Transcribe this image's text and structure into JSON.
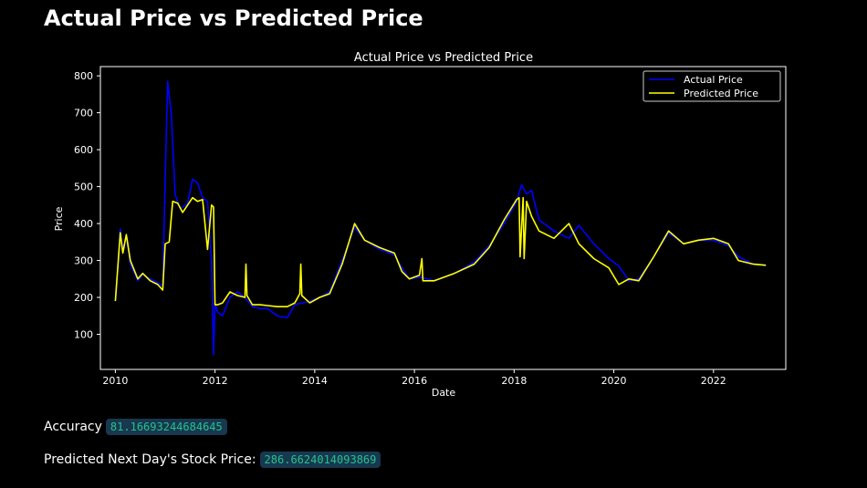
{
  "page": {
    "heading": "Actual Price vs Predicted Price"
  },
  "stats": {
    "accuracy_label": "Accuracy",
    "accuracy_value": "81.16693244684645",
    "next_price_label": "Predicted Next Day's Stock Price:",
    "next_price_value": "286.6624014093869"
  },
  "colors": {
    "background": "#000000",
    "actual": "#0000ff",
    "predicted": "#ffff00",
    "code_text": "#25c18d",
    "code_bg": "#17384f"
  },
  "chart_data": {
    "type": "line",
    "title": "Actual Price vs Predicted Price",
    "xlabel": "Date",
    "ylabel": "Price",
    "xlim": [
      2009.7,
      2023.45
    ],
    "ylim": [
      5,
      825
    ],
    "xticks": [
      2010,
      2012,
      2014,
      2016,
      2018,
      2020,
      2022
    ],
    "xtick_labels": [
      "2010",
      "2012",
      "2014",
      "2016",
      "2018",
      "2020",
      "2022"
    ],
    "yticks": [
      100,
      200,
      300,
      400,
      500,
      600,
      700,
      800
    ],
    "ytick_labels": [
      "100",
      "200",
      "300",
      "400",
      "500",
      "600",
      "700",
      "800"
    ],
    "legend_position": "top-right",
    "legend": [
      "Actual Price",
      "Predicted Price"
    ],
    "series": [
      {
        "name": "Actual Price",
        "color": "#0000ff",
        "x": [
          2010.0,
          2010.1,
          2010.15,
          2010.22,
          2010.3,
          2010.45,
          2010.55,
          2010.7,
          2010.85,
          2010.95,
          2011.0,
          2011.05,
          2011.12,
          2011.2,
          2011.3,
          2011.45,
          2011.55,
          2011.65,
          2011.75,
          2011.85,
          2011.93,
          2011.97,
          2012.0,
          2012.05,
          2012.15,
          2012.3,
          2012.45,
          2012.6,
          2012.75,
          2012.9,
          2013.05,
          2013.25,
          2013.45,
          2013.6,
          2013.75,
          2013.9,
          2014.1,
          2014.3,
          2014.55,
          2014.8,
          2015.0,
          2015.3,
          2015.6,
          2015.75,
          2015.9,
          2016.1,
          2016.4,
          2016.8,
          2017.2,
          2017.5,
          2017.8,
          2018.05,
          2018.15,
          2018.25,
          2018.35,
          2018.5,
          2018.8,
          2019.1,
          2019.3,
          2019.6,
          2019.9,
          2020.1,
          2020.3,
          2020.5,
          2020.8,
          2021.1,
          2021.4,
          2021.7,
          2022.0,
          2022.3,
          2022.5,
          2022.8,
          2023.05
        ],
        "y": [
          190,
          385,
          330,
          365,
          290,
          245,
          262,
          250,
          240,
          230,
          520,
          785,
          700,
          480,
          440,
          455,
          520,
          510,
          470,
          460,
          300,
          45,
          185,
          160,
          150,
          200,
          215,
          200,
          175,
          170,
          170,
          150,
          145,
          180,
          185,
          190,
          200,
          215,
          300,
          390,
          355,
          330,
          315,
          280,
          250,
          255,
          245,
          265,
          295,
          340,
          400,
          460,
          505,
          480,
          490,
          410,
          380,
          360,
          395,
          345,
          305,
          285,
          245,
          250,
          310,
          375,
          345,
          355,
          355,
          340,
          310,
          290,
          287
        ]
      },
      {
        "name": "Predicted Price",
        "color": "#ffff00",
        "x": [
          2010.0,
          2010.1,
          2010.15,
          2010.22,
          2010.3,
          2010.45,
          2010.55,
          2010.7,
          2010.85,
          2010.95,
          2011.0,
          2011.08,
          2011.15,
          2011.25,
          2011.35,
          2011.45,
          2011.55,
          2011.65,
          2011.75,
          2011.85,
          2011.93,
          2011.97,
          2012.0,
          2012.05,
          2012.15,
          2012.3,
          2012.45,
          2012.6,
          2012.62,
          2012.64,
          2012.75,
          2012.9,
          2013.05,
          2013.25,
          2013.45,
          2013.6,
          2013.7,
          2013.72,
          2013.74,
          2013.9,
          2014.1,
          2014.3,
          2014.55,
          2014.8,
          2015.0,
          2015.3,
          2015.6,
          2015.75,
          2015.9,
          2016.1,
          2016.15,
          2016.17,
          2016.4,
          2016.8,
          2017.2,
          2017.5,
          2017.8,
          2018.05,
          2018.1,
          2018.12,
          2018.18,
          2018.2,
          2018.25,
          2018.35,
          2018.5,
          2018.8,
          2019.1,
          2019.3,
          2019.6,
          2019.9,
          2020.1,
          2020.3,
          2020.5,
          2020.8,
          2021.1,
          2021.4,
          2021.7,
          2022.0,
          2022.3,
          2022.5,
          2022.8,
          2023.05
        ],
        "y": [
          190,
          375,
          320,
          370,
          300,
          250,
          265,
          245,
          235,
          220,
          345,
          350,
          460,
          455,
          430,
          450,
          470,
          460,
          465,
          330,
          450,
          445,
          180,
          180,
          185,
          215,
          205,
          200,
          290,
          205,
          180,
          180,
          178,
          175,
          175,
          185,
          210,
          290,
          205,
          185,
          200,
          210,
          290,
          400,
          355,
          335,
          320,
          270,
          250,
          260,
          305,
          245,
          245,
          265,
          290,
          335,
          410,
          465,
          470,
          310,
          470,
          305,
          460,
          420,
          380,
          360,
          400,
          345,
          305,
          280,
          235,
          250,
          245,
          310,
          380,
          345,
          355,
          360,
          345,
          300,
          290,
          287
        ]
      }
    ]
  }
}
